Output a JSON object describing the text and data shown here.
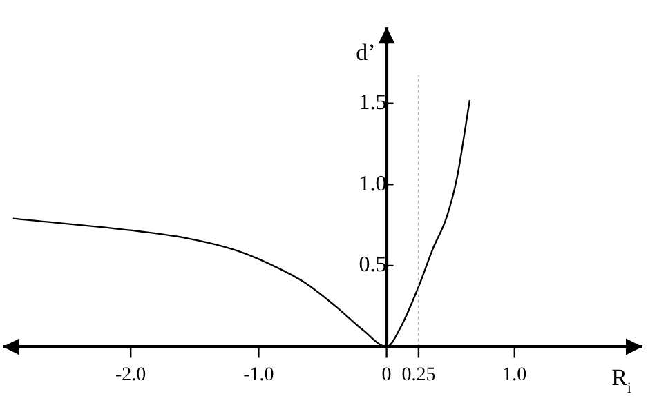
{
  "chart_data": {
    "type": "line",
    "xlabel": "R$_{i}$",
    "ylabel": "d’",
    "x": [
      -2.92,
      -1.92,
      -1.57,
      -1.2,
      -1.0,
      -0.65,
      -0.4,
      -0.18,
      0,
      0.11,
      0.25,
      0.36,
      0.47,
      0.55,
      0.65
    ],
    "series": [
      {
        "color": "#000000",
        "values": [
          0.79,
          0.71,
          0.67,
          0.6,
          0.54,
          0.4,
          0.25,
          0.1,
          0,
          0.12,
          0.37,
          0.6,
          0.8,
          1.04,
          1.52
        ]
      }
    ],
    "xlim": [
      -3.0,
      2.0
    ],
    "ylim": [
      0,
      1.97
    ],
    "xticks": [
      {
        "value": -2,
        "label": "-2.0"
      },
      {
        "value": -1,
        "label": "-1.0"
      },
      0,
      0.25,
      {
        "value": 1,
        "label": "1.0"
      }
    ],
    "yticks": [
      {
        "value": 0.5,
        "label": "0.5"
      },
      {
        "value": 1,
        "label": "1.0"
      },
      {
        "value": 1.5,
        "label": "1.5"
      }
    ],
    "ref_lines": [
      {
        "axis": "x",
        "value": 0.25,
        "color": "#aaaaaa",
        "line_style": "dotted"
      }
    ],
    "grid": false,
    "legend": false,
    "marker": "none",
    "line_style": "solid"
  }
}
